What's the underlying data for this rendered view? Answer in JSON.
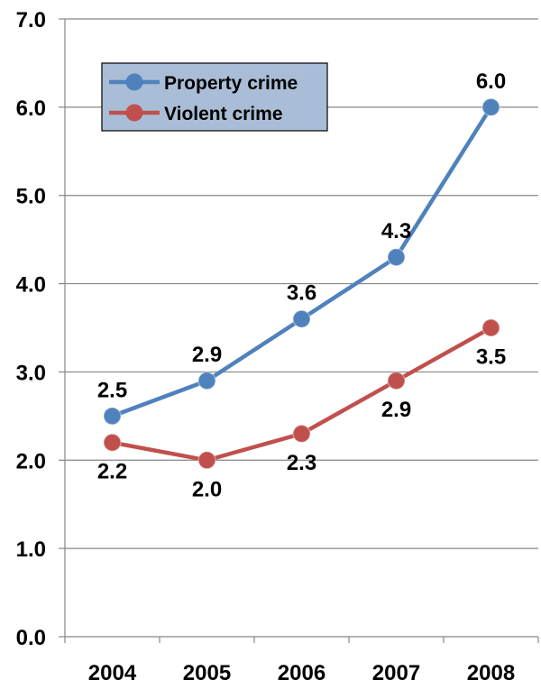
{
  "chart_data": {
    "type": "line",
    "categories": [
      "2004",
      "2005",
      "2006",
      "2007",
      "2008"
    ],
    "series": [
      {
        "name": "Property crime",
        "values": [
          2.5,
          2.9,
          3.6,
          4.3,
          6.0
        ],
        "color": "#4f81bd",
        "label_position": "above"
      },
      {
        "name": "Violent crime",
        "values": [
          2.2,
          2.0,
          2.3,
          2.9,
          3.5
        ],
        "color": "#c0504d",
        "label_position": "below"
      }
    ],
    "ylim": [
      0,
      7
    ],
    "yticks": [
      "0.0",
      "1.0",
      "2.0",
      "3.0",
      "4.0",
      "5.0",
      "6.0",
      "7.0"
    ],
    "grid": true,
    "legend": {
      "placement": "top-left",
      "background": "#a9bdd6"
    }
  }
}
